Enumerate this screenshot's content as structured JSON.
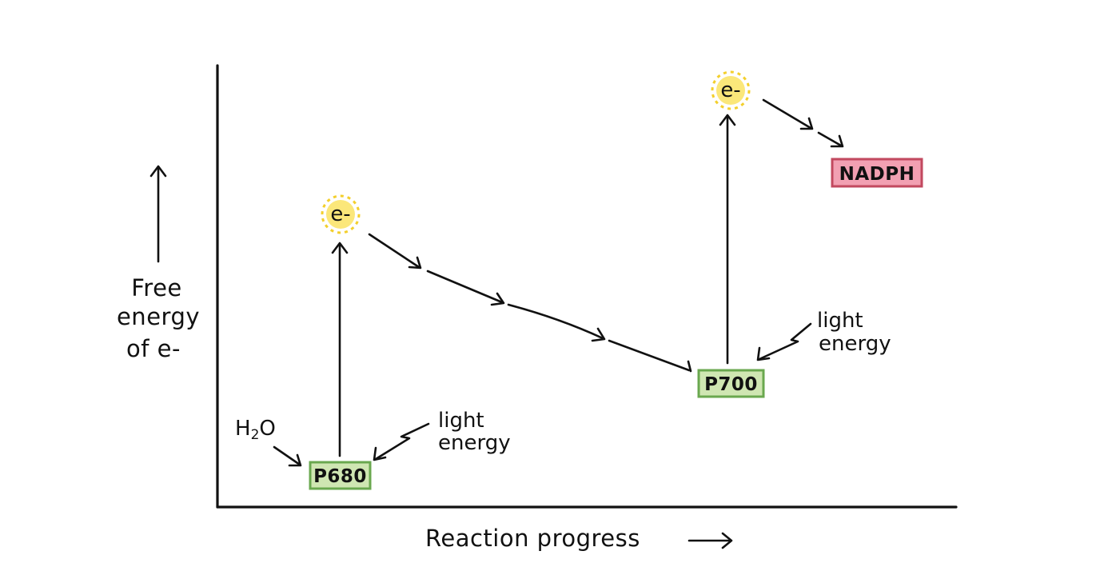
{
  "axes": {
    "y_label_lines": [
      "Free",
      "energy",
      "of e-"
    ],
    "x_label": "Reaction progress"
  },
  "boxes": {
    "p680": "P680",
    "p700": "P700",
    "nadph": "NADPH"
  },
  "electrons": {
    "label": "e-"
  },
  "inputs": {
    "water_main": "H",
    "water_sub": "2",
    "water_tail": "O"
  },
  "light": {
    "ps2_lines": [
      "light",
      "energy"
    ],
    "ps1_lines": [
      "light",
      "energy"
    ]
  },
  "colors": {
    "photosystem_fill": "#cfe6b2",
    "photosystem_stroke": "#6aa84f",
    "nadph_fill": "#f2a0b2",
    "nadph_stroke": "#c2495f",
    "electron_fill": "#fbe77a",
    "electron_rays": "#f3cf2c",
    "ink": "#111111"
  }
}
